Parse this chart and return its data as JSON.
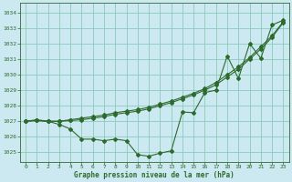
{
  "title": "Graphe pression niveau de la mer (hPa)",
  "background_color": "#cce8f0",
  "grid_color": "#88ccbb",
  "line_color": "#2d6a2d",
  "xlim_min": -0.5,
  "xlim_max": 23.5,
  "ylim_min": 1024.4,
  "ylim_max": 1034.6,
  "yticks": [
    1025,
    1026,
    1027,
    1028,
    1029,
    1030,
    1031,
    1032,
    1033,
    1034
  ],
  "xticks": [
    0,
    1,
    2,
    3,
    4,
    5,
    6,
    7,
    8,
    9,
    10,
    11,
    12,
    13,
    14,
    15,
    16,
    17,
    18,
    19,
    20,
    21,
    22,
    23
  ],
  "s1": [
    1027.0,
    1027.1,
    1027.0,
    1026.8,
    1026.5,
    1025.85,
    1025.85,
    1025.75,
    1025.85,
    1025.75,
    1024.85,
    1024.75,
    1024.95,
    1025.1,
    1027.6,
    1027.55,
    1028.85,
    1029.0,
    1031.2,
    1029.75,
    1032.0,
    1031.05,
    1033.2,
    1033.5
  ],
  "s2": [
    1027.0,
    1027.05,
    1027.0,
    1027.0,
    1027.1,
    1027.2,
    1027.3,
    1027.4,
    1027.55,
    1027.65,
    1027.75,
    1027.9,
    1028.1,
    1028.3,
    1028.55,
    1028.8,
    1029.1,
    1029.5,
    1030.0,
    1030.5,
    1031.1,
    1031.8,
    1032.5,
    1033.4
  ],
  "s3": [
    1027.0,
    1027.05,
    1027.0,
    1027.0,
    1027.05,
    1027.1,
    1027.2,
    1027.3,
    1027.45,
    1027.55,
    1027.65,
    1027.8,
    1028.0,
    1028.2,
    1028.45,
    1028.7,
    1029.0,
    1029.35,
    1029.85,
    1030.35,
    1031.0,
    1031.65,
    1032.4,
    1033.35
  ],
  "xlabel_fontsize": 5.5,
  "tick_fontsize": 4.5
}
